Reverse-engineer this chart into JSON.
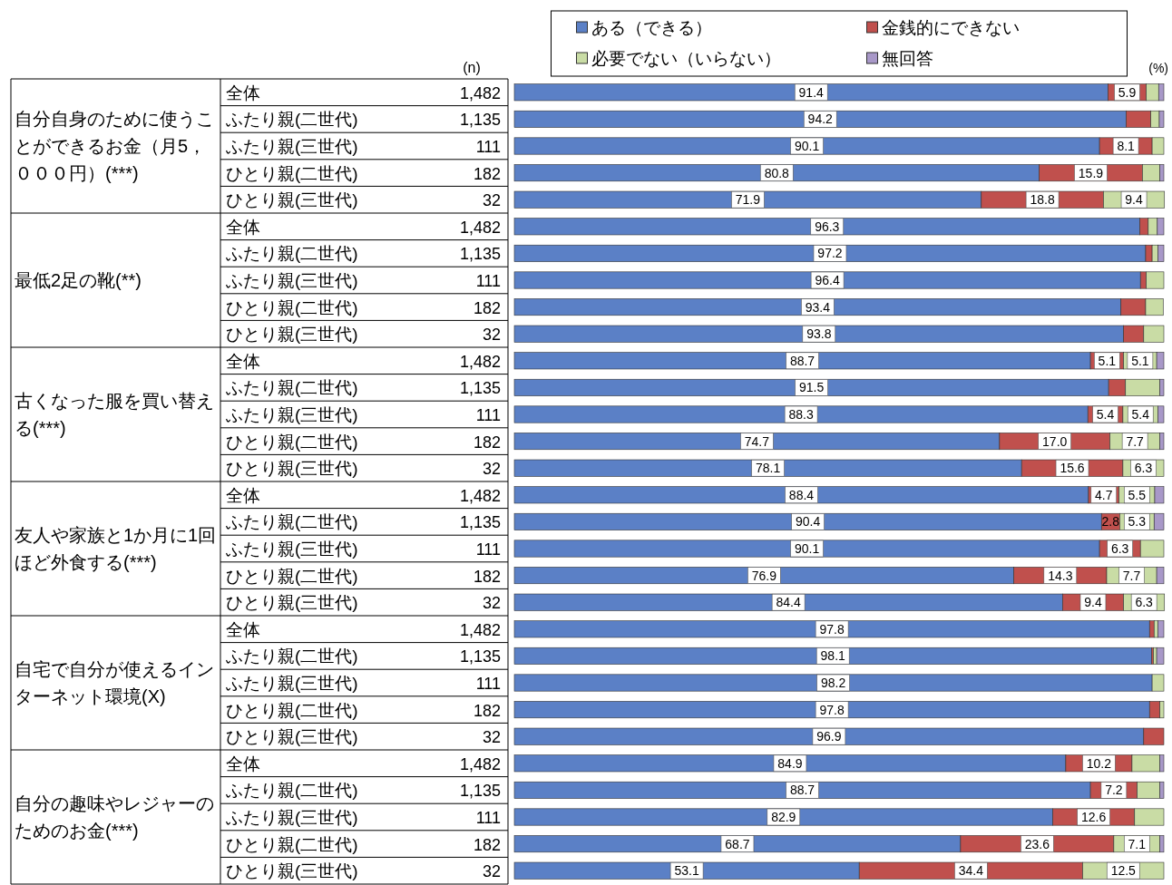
{
  "chart_data": {
    "type": "bar",
    "orientation": "horizontal",
    "stacked": true,
    "legend": "top",
    "xlim": [
      0,
      100
    ],
    "categories": [
      "全体",
      "ふたり親(二世代)",
      "ふたり親(三世代)",
      "ひとり親(二世代)",
      "ひとり親(三世代)",
      "全体",
      "ふたり親(二世代)",
      "ふたり親(三世代)",
      "ひとり親(二世代)",
      "ひとり親(三世代)",
      "全体",
      "ふたり親(二世代)",
      "ふたり親(三世代)",
      "ひとり親(二世代)",
      "ひとり親(三世代)",
      "全体",
      "ふたり親(二世代)",
      "ふたり親(三世代)",
      "ひとり親(二世代)",
      "ひとり親(三世代)",
      "全体",
      "ふたり親(二世代)",
      "ふたり親(三世代)",
      "ひとり親(二世代)",
      "ひとり親(三世代)",
      "全体",
      "ふたり親(二世代)",
      "ふたり親(三世代)",
      "ひとり親(二世代)",
      "ひとり親(三世代)"
    ],
    "series": [
      {
        "name": "ある（できる）",
        "color": "#5b80c6",
        "values": [
          91.4,
          94.2,
          90.1,
          80.8,
          71.9,
          96.3,
          97.2,
          96.4,
          93.4,
          93.8,
          88.7,
          91.5,
          88.3,
          74.7,
          78.1,
          88.4,
          90.4,
          90.1,
          76.9,
          84.4,
          97.8,
          98.1,
          98.2,
          97.8,
          96.9,
          84.9,
          88.7,
          82.9,
          68.7,
          53.1
        ],
        "value_labels": [
          "91.4",
          "94.2",
          "90.1",
          "80.8",
          "71.9",
          "96.3",
          "97.2",
          "96.4",
          "93.4",
          "93.8",
          "88.7",
          "91.5",
          "88.3",
          "74.7",
          "78.1",
          "88.4",
          "90.4",
          "90.1",
          "76.9",
          "84.4",
          "97.8",
          "98.1",
          "98.2",
          "97.8",
          "96.9",
          "84.9",
          "88.7",
          "82.9",
          "68.7",
          "53.1"
        ]
      },
      {
        "name": "金銭的にできない",
        "color": "#c0504d",
        "values": [
          5.9,
          3.8,
          8.1,
          15.9,
          18.8,
          1.3,
          1.0,
          0.9,
          3.8,
          3.1,
          5.1,
          2.6,
          5.4,
          17.0,
          15.6,
          4.7,
          2.8,
          6.3,
          14.3,
          9.4,
          0.7,
          0.3,
          0,
          1.6,
          3.1,
          10.2,
          7.2,
          12.6,
          23.6,
          34.4
        ],
        "value_labels": [
          "5.9",
          null,
          "8.1",
          "15.9",
          "18.8",
          null,
          null,
          null,
          null,
          null,
          "5.1",
          null,
          "5.4",
          "17.0",
          "15.6",
          "4.7",
          "2.8",
          "6.3",
          "14.3",
          "9.4",
          null,
          null,
          null,
          null,
          null,
          "10.2",
          "7.2",
          "12.6",
          "23.6",
          "34.4"
        ]
      },
      {
        "name": "必要でない（いらない）",
        "color": "#c9dca5",
        "values": [
          1.9,
          1.3,
          1.8,
          2.7,
          9.4,
          1.4,
          0.9,
          2.7,
          2.7,
          3.1,
          5.1,
          5.3,
          5.4,
          7.7,
          6.3,
          5.5,
          5.3,
          3.6,
          7.7,
          6.3,
          0.6,
          0.5,
          1.8,
          0.6,
          0,
          4.3,
          3.5,
          4.5,
          7.1,
          12.5
        ],
        "value_labels": [
          null,
          null,
          null,
          null,
          "9.4",
          null,
          null,
          null,
          null,
          null,
          "5.1",
          null,
          "5.4",
          "7.7",
          "6.3",
          "5.5",
          "5.3",
          null,
          "7.7",
          "6.3",
          null,
          null,
          null,
          null,
          null,
          null,
          null,
          null,
          "7.1",
          "12.5"
        ]
      },
      {
        "name": "無回答",
        "color": "#a898c8",
        "values": [
          0.8,
          0.7,
          0,
          0.6,
          0,
          1.0,
          0.9,
          0,
          0,
          0,
          1.1,
          0.6,
          0.9,
          0.6,
          0,
          1.4,
          1.5,
          0,
          1.1,
          0,
          0.9,
          1.1,
          0,
          0,
          0,
          0.6,
          0.6,
          0,
          0.6,
          0
        ]
      }
    ],
    "annotations": [
      "(n)",
      "(%)",
      "自分自身のために使うことができるお金（月5，０００円）(***)",
      "最低2足の靴(**)",
      "古くなった服を買い替える(***)",
      "友人や家族と1か月に1回ほど外食する(***)",
      "自宅で自分が使えるインターネット環境(X)",
      "自分の趣味やレジャーのためのお金(***)",
      "1,482",
      "1,135",
      "111",
      "182",
      "32",
      "1,482",
      "1,135",
      "111",
      "182",
      "32",
      "1,482",
      "1,135",
      "111",
      "182",
      "32",
      "1,482",
      "1,135",
      "111",
      "182",
      "32",
      "1,482",
      "1,135",
      "111",
      "182",
      "32",
      "1,482",
      "1,135",
      "111",
      "182",
      "32"
    ]
  }
}
